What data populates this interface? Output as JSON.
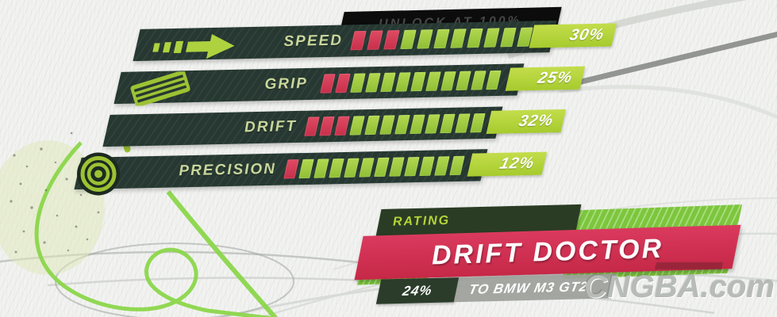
{
  "unlock_banner": {
    "label": "UNLOCK AT 100%"
  },
  "stats": {
    "rows": [
      {
        "name": "speed",
        "label": "SPEED",
        "value": "30%",
        "red_blocks": 3,
        "green_blocks": 8
      },
      {
        "name": "grip",
        "label": "GRIP",
        "value": "25%",
        "red_blocks": 2,
        "green_blocks": 10
      },
      {
        "name": "drift",
        "label": "DRIFT",
        "value": "32%",
        "red_blocks": 3,
        "green_blocks": 9
      },
      {
        "name": "precision",
        "label": "PRECISION",
        "value": "12%",
        "red_blocks": 1,
        "green_blocks": 11
      }
    ]
  },
  "rating": {
    "header_label": "RATING",
    "title": "DRIFT DOCTOR",
    "progress_value": "24%",
    "progress_target": "TO BMW M3 GT2"
  },
  "watermark": "CNGBA.com",
  "colors": {
    "bar_dark": "#263831",
    "accent_green": "#b5d438",
    "block_green": "#9ecb3f",
    "block_red": "#d0374f",
    "banner_red": "#d22f52",
    "brush_green": "#7cc63e"
  }
}
